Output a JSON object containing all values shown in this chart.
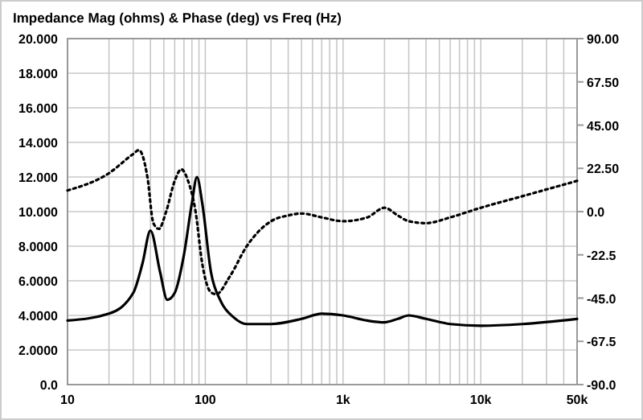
{
  "chart_data": {
    "type": "line",
    "title": "Impedance Mag (ohms) & Phase (deg) vs Freq (Hz)",
    "log": "x",
    "grid": true,
    "xlim": [
      10,
      50000
    ],
    "xticks": [
      10,
      {
        "value": 20,
        "label": null
      },
      {
        "value": 30,
        "label": null
      },
      {
        "value": 40,
        "label": null
      },
      {
        "value": 50,
        "label": null
      },
      {
        "value": 60,
        "label": null
      },
      {
        "value": 70,
        "label": null
      },
      {
        "value": 80,
        "label": null
      },
      {
        "value": 90,
        "label": null
      },
      100,
      {
        "value": 200,
        "label": null
      },
      {
        "value": 300,
        "label": null
      },
      {
        "value": 400,
        "label": null
      },
      {
        "value": 500,
        "label": null
      },
      {
        "value": 600,
        "label": null
      },
      {
        "value": 700,
        "label": null
      },
      {
        "value": 800,
        "label": null
      },
      {
        "value": 900,
        "label": null
      },
      {
        "value": 1000,
        "label": "1k"
      },
      {
        "value": 2000,
        "label": null
      },
      {
        "value": 3000,
        "label": null
      },
      {
        "value": 4000,
        "label": null
      },
      {
        "value": 5000,
        "label": null
      },
      {
        "value": 6000,
        "label": null
      },
      {
        "value": 7000,
        "label": null
      },
      {
        "value": 8000,
        "label": null
      },
      {
        "value": 9000,
        "label": null
      },
      {
        "value": 10000,
        "label": "10k"
      },
      {
        "value": 20000,
        "label": null
      },
      {
        "value": 30000,
        "label": null
      },
      {
        "value": 40000,
        "label": null
      },
      {
        "value": 50000,
        "label": "50k"
      }
    ],
    "ylim": [
      0,
      20
    ],
    "yticks": [
      {
        "value": 0,
        "label": "0.0"
      },
      {
        "value": 2,
        "label": "2.0000"
      },
      {
        "value": 4,
        "label": "4.0000"
      },
      {
        "value": 6,
        "label": "6.0000"
      },
      {
        "value": 8,
        "label": "8.0000"
      },
      {
        "value": 10,
        "label": "10.000"
      },
      {
        "value": 12,
        "label": "12.000"
      },
      {
        "value": 14,
        "label": "14.000"
      },
      {
        "value": 16,
        "label": "16.000"
      },
      {
        "value": 18,
        "label": "18.000"
      },
      {
        "value": 20,
        "label": "20.000"
      }
    ],
    "y2lim": [
      -90,
      90
    ],
    "y2ticks": [
      {
        "value": 90,
        "label": "90.00"
      },
      {
        "value": 67.5,
        "label": "67.50"
      },
      {
        "value": 45,
        "label": "45.00"
      },
      {
        "value": 22.5,
        "label": "22.50"
      },
      {
        "value": 0,
        "label": "0.0"
      },
      {
        "value": -22.5,
        "label": "-22.5"
      },
      {
        "value": -45,
        "label": "-45.0"
      },
      {
        "value": -67.5,
        "label": "-67.5"
      },
      {
        "value": -90,
        "label": "-90.0"
      }
    ],
    "series": [
      {
        "color": "#000000",
        "line_style": "solid",
        "x": [
          10,
          20,
          30,
          35,
          40,
          47,
          53,
          60,
          70,
          80,
          87,
          95,
          110,
          130,
          160,
          200,
          300,
          500,
          700,
          1000,
          1500,
          2000,
          2500,
          3000,
          4000,
          6000,
          10000,
          20000,
          50000
        ],
        "values": [
          3.7,
          4.1,
          5.3,
          7,
          8.9,
          6.5,
          4.9,
          5.3,
          7.5,
          10.5,
          12,
          10.5,
          6.5,
          4.8,
          3.9,
          3.5,
          3.5,
          3.8,
          4.1,
          4,
          3.7,
          3.6,
          3.8,
          4,
          3.8,
          3.5,
          3.4,
          3.5,
          3.8
        ]
      },
      {
        "color": "#000000",
        "line_style": "dotted",
        "axis": "y2",
        "x": [
          10,
          20,
          30,
          33,
          38,
          42,
          46,
          52,
          60,
          67,
          75,
          85,
          95,
          110,
          120,
          150,
          200,
          300,
          400,
          500,
          700,
          1000,
          1500,
          2000,
          2500,
          3000,
          4000,
          6000,
          10000,
          20000,
          50000
        ],
        "values": [
          11,
          20,
          30,
          32,
          18,
          -6,
          -9,
          0,
          16,
          22,
          16,
          0,
          -27,
          -42,
          -43,
          -34,
          -18,
          -5,
          -2,
          -1,
          -3,
          -5,
          -3,
          2,
          -2,
          -5,
          -6,
          -3,
          2,
          8,
          16
        ]
      }
    ]
  }
}
